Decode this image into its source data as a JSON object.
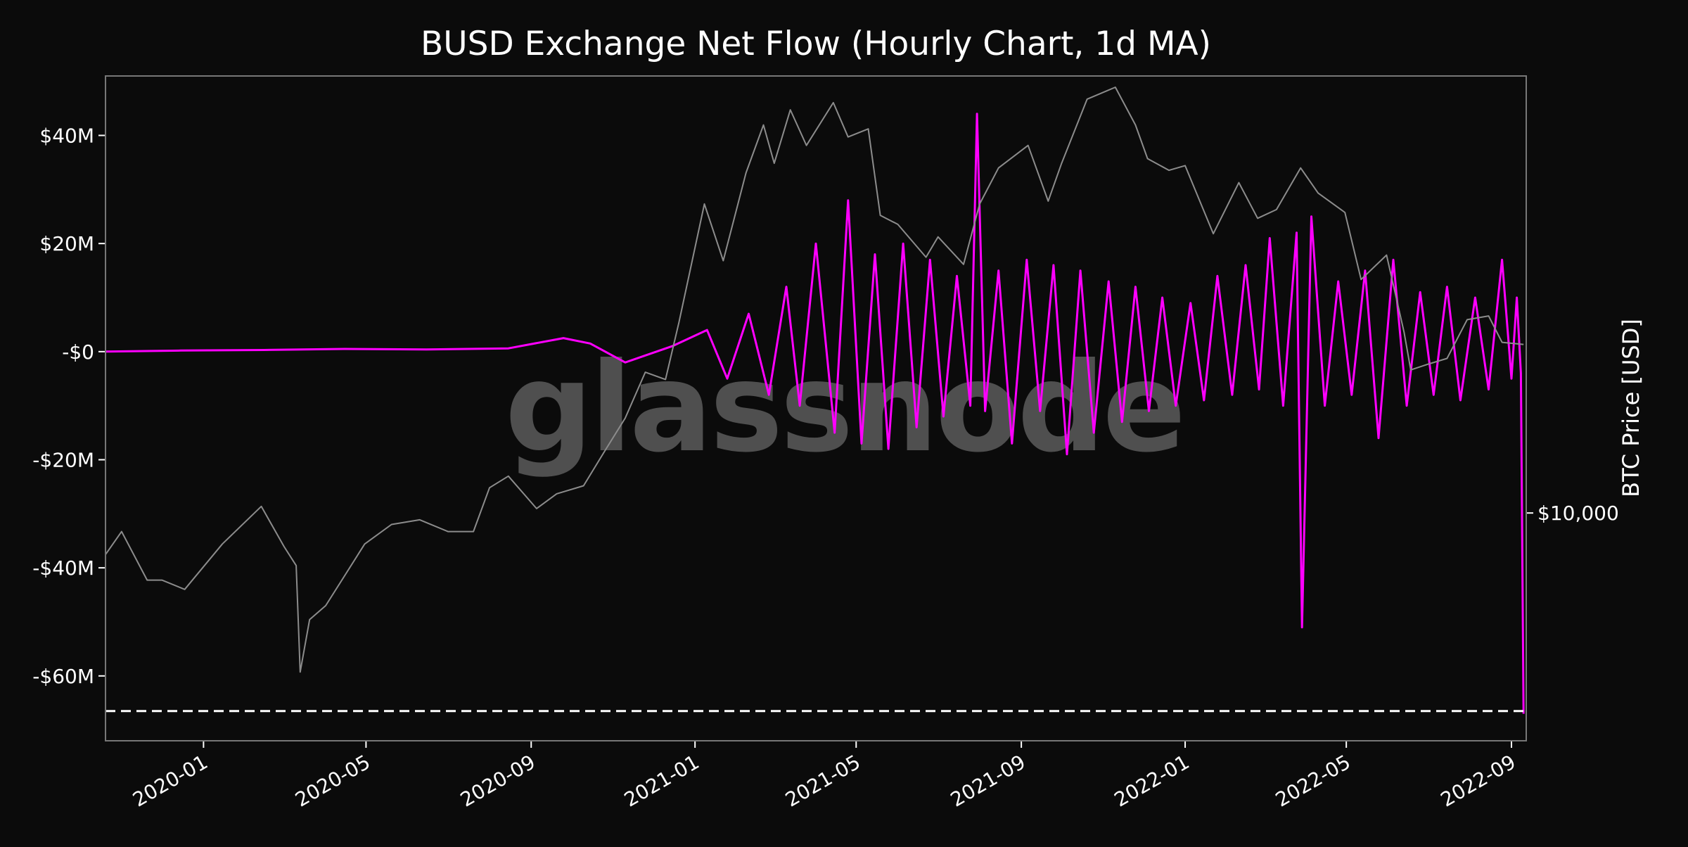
{
  "chart_data": {
    "type": "line",
    "title": "BUSD Exchange Net Flow (Hourly Chart, 1d MA)",
    "watermark": "glassnode",
    "x_range": [
      "2019-10-20",
      "2022-09-12"
    ],
    "x_ticks": [
      "2020-01",
      "2020-05",
      "2020-09",
      "2021-01",
      "2021-05",
      "2021-09",
      "2022-01",
      "2022-05",
      "2022-09"
    ],
    "y_left": {
      "ticks": [
        40000000,
        20000000,
        0,
        -20000000,
        -40000000,
        -60000000
      ],
      "tick_labels": [
        "$40M",
        "$20M",
        "-$0",
        "-$20M",
        "-$40M",
        "-$60M"
      ],
      "range": [
        -72000000,
        51000000
      ]
    },
    "y_right": {
      "label": "BTC Price [USD]",
      "scale": "log",
      "ticks": [
        10000
      ],
      "tick_labels": [
        "$10,000"
      ],
      "range": [
        3600,
        71000
      ]
    },
    "reference_line": {
      "value": -66500000,
      "style": "dashed",
      "color": "#ffffff"
    },
    "grid": false,
    "colors": {
      "background": "#0b0b0b",
      "net_flow": "#ff00ff",
      "btc_price": "#8c8c8c",
      "text": "#ffffff",
      "frame": "#777777"
    },
    "series": [
      {
        "name": "BUSD Exchange Net Flow",
        "axis": "left",
        "x": [
          "2019-10-20",
          "2019-12-15",
          "2020-02-15",
          "2020-04-15",
          "2020-06-15",
          "2020-08-15",
          "2020-09-25",
          "2020-10-15",
          "2020-11-10",
          "2020-12-15",
          "2021-01-10",
          "2021-01-25",
          "2021-02-10",
          "2021-02-25",
          "2021-03-10",
          "2021-03-20",
          "2021-04-01",
          "2021-04-15",
          "2021-04-25",
          "2021-05-05",
          "2021-05-15",
          "2021-05-25",
          "2021-06-05",
          "2021-06-15",
          "2021-06-25",
          "2021-07-05",
          "2021-07-15",
          "2021-07-25",
          "2021-07-30",
          "2021-08-05",
          "2021-08-15",
          "2021-08-25",
          "2021-09-05",
          "2021-09-15",
          "2021-09-25",
          "2021-10-05",
          "2021-10-15",
          "2021-10-25",
          "2021-11-05",
          "2021-11-15",
          "2021-11-25",
          "2021-12-05",
          "2021-12-15",
          "2021-12-25",
          "2022-01-05",
          "2022-01-15",
          "2022-01-25",
          "2022-02-05",
          "2022-02-15",
          "2022-02-25",
          "2022-03-05",
          "2022-03-15",
          "2022-03-25",
          "2022-03-29",
          "2022-04-05",
          "2022-04-15",
          "2022-04-25",
          "2022-05-05",
          "2022-05-15",
          "2022-05-25",
          "2022-06-05",
          "2022-06-15",
          "2022-06-25",
          "2022-07-05",
          "2022-07-15",
          "2022-07-25",
          "2022-08-05",
          "2022-08-15",
          "2022-08-25",
          "2022-09-01",
          "2022-09-05",
          "2022-09-08",
          "2022-09-10"
        ],
        "values": [
          0,
          0.2,
          0.3,
          0.5,
          0.4,
          0.6,
          2.5,
          1.5,
          -2,
          1,
          4,
          -5,
          7,
          -8,
          12,
          -10,
          20,
          -15,
          28,
          -17,
          18,
          -18,
          20,
          -14,
          17,
          -12,
          14,
          -10,
          44,
          -11,
          15,
          -17,
          17,
          -11,
          16,
          -19,
          15,
          -15,
          13,
          -13,
          12,
          -11,
          10,
          -10,
          9,
          -9,
          14,
          -8,
          16,
          -7,
          21,
          -10,
          22,
          -51,
          25,
          -10,
          13,
          -8,
          15,
          -16,
          17,
          -10,
          11,
          -8,
          12,
          -9,
          10,
          -7,
          17,
          -5,
          10,
          -4,
          -67
        ]
      },
      {
        "name": "BTC Price",
        "axis": "right",
        "x": [
          "2019-10-20",
          "2019-11-01",
          "2019-11-20",
          "2019-12-01",
          "2019-12-18",
          "2020-01-15",
          "2020-02-13",
          "2020-03-01",
          "2020-03-10",
          "2020-03-13",
          "2020-03-20",
          "2020-04-01",
          "2020-04-30",
          "2020-05-20",
          "2020-06-10",
          "2020-07-01",
          "2020-07-20",
          "2020-08-01",
          "2020-08-15",
          "2020-09-05",
          "2020-09-20",
          "2020-10-10",
          "2020-10-25",
          "2020-11-10",
          "2020-11-25",
          "2020-12-10",
          "2020-12-20",
          "2021-01-08",
          "2021-01-22",
          "2021-02-08",
          "2021-02-21",
          "2021-03-01",
          "2021-03-13",
          "2021-03-25",
          "2021-04-14",
          "2021-04-25",
          "2021-05-10",
          "2021-05-19",
          "2021-06-01",
          "2021-06-22",
          "2021-07-01",
          "2021-07-20",
          "2021-08-01",
          "2021-08-15",
          "2021-09-06",
          "2021-09-21",
          "2021-10-01",
          "2021-10-20",
          "2021-11-10",
          "2021-11-25",
          "2021-12-04",
          "2021-12-20",
          "2022-01-01",
          "2022-01-22",
          "2022-02-10",
          "2022-02-24",
          "2022-03-10",
          "2022-03-28",
          "2022-04-10",
          "2022-04-30",
          "2022-05-12",
          "2022-05-31",
          "2022-06-13",
          "2022-06-18",
          "2022-07-01",
          "2022-07-15",
          "2022-07-30",
          "2022-08-15",
          "2022-08-25",
          "2022-09-10"
        ],
        "values": [
          8300,
          9200,
          7400,
          7400,
          7100,
          8700,
          10300,
          8600,
          7900,
          4900,
          6200,
          6600,
          8700,
          9500,
          9700,
          9200,
          9200,
          11200,
          11800,
          10200,
          10900,
          11300,
          13100,
          15300,
          18800,
          18200,
          23500,
          40000,
          31000,
          46000,
          57000,
          48000,
          61000,
          52000,
          63000,
          54000,
          56000,
          38000,
          36500,
          31500,
          34500,
          30500,
          40000,
          47000,
          52000,
          40500,
          48000,
          64000,
          67500,
          57000,
          49000,
          46500,
          47500,
          35000,
          44000,
          37500,
          39000,
          47000,
          42000,
          38500,
          28500,
          31800,
          22500,
          19000,
          19500,
          20000,
          23800,
          24200,
          21500,
          21300
        ]
      }
    ]
  }
}
